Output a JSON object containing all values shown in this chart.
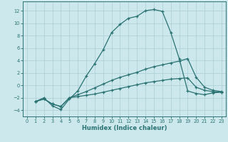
{
  "xlabel": "Humidex (Indice chaleur)",
  "bg_color": "#cce8ed",
  "grid_color": "#aacdd5",
  "line_color": "#2a7272",
  "xlim": [
    -0.5,
    23.5
  ],
  "ylim": [
    -5.0,
    13.5
  ],
  "xticks": [
    0,
    1,
    2,
    3,
    4,
    5,
    6,
    7,
    8,
    9,
    10,
    11,
    12,
    13,
    14,
    15,
    16,
    17,
    18,
    19,
    20,
    21,
    22,
    23
  ],
  "yticks": [
    -4,
    -2,
    0,
    2,
    4,
    6,
    8,
    10,
    12
  ],
  "line1_x": [
    1,
    2,
    3,
    4,
    5,
    6,
    7,
    8,
    9,
    10,
    11,
    12,
    13,
    14,
    15,
    16,
    17,
    18,
    19,
    20,
    21,
    22,
    23
  ],
  "line1_y": [
    -2.6,
    -2.0,
    -3.3,
    -3.9,
    -2.2,
    -0.9,
    1.5,
    3.5,
    5.7,
    8.5,
    9.8,
    10.8,
    11.1,
    12.0,
    12.2,
    11.9,
    8.5,
    4.3,
    -0.9,
    -1.3,
    -1.5,
    -1.2,
    -1.1
  ],
  "line2_x": [
    1,
    2,
    3,
    4,
    5,
    6,
    7,
    8,
    9,
    10,
    11,
    12,
    13,
    14,
    15,
    16,
    17,
    18,
    19,
    20,
    21,
    22,
    23
  ],
  "line2_y": [
    -2.6,
    -2.2,
    -3.0,
    -3.4,
    -2.0,
    -1.5,
    -1.0,
    -0.4,
    0.2,
    0.8,
    1.3,
    1.7,
    2.1,
    2.6,
    3.0,
    3.3,
    3.6,
    3.9,
    4.3,
    1.3,
    -0.3,
    -0.8,
    -1.0
  ],
  "line3_x": [
    1,
    2,
    3,
    4,
    5,
    6,
    7,
    8,
    9,
    10,
    11,
    12,
    13,
    14,
    15,
    16,
    17,
    18,
    19,
    20,
    21,
    22,
    23
  ],
  "line3_y": [
    -2.6,
    -2.2,
    -3.0,
    -3.4,
    -2.0,
    -1.8,
    -1.6,
    -1.4,
    -1.1,
    -0.8,
    -0.5,
    -0.2,
    0.1,
    0.4,
    0.6,
    0.8,
    1.0,
    1.1,
    1.2,
    -0.3,
    -0.8,
    -1.0,
    -1.1
  ]
}
